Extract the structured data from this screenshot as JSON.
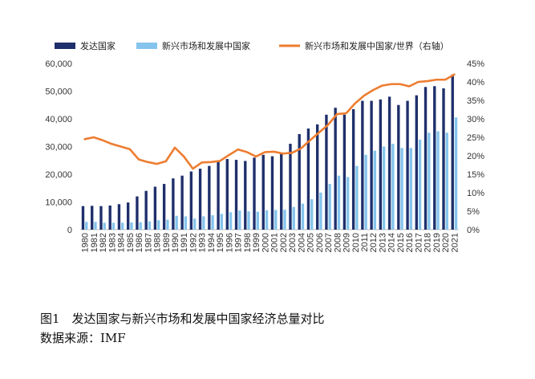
{
  "caption": {
    "title": "图1　发达国家与新兴市场和发展中国家经济总量对比",
    "source": "数据来源：IMF"
  },
  "chart_data": {
    "type": "bar",
    "legend_position": "top",
    "x": [
      "1980",
      "1981",
      "1982",
      "1983",
      "1984",
      "1985",
      "1986",
      "1987",
      "1988",
      "1989",
      "1990",
      "1991",
      "1992",
      "1993",
      "1994",
      "1995",
      "1996",
      "1997",
      "1998",
      "1999",
      "2000",
      "2001",
      "2002",
      "2003",
      "2004",
      "2005",
      "2006",
      "2007",
      "2008",
      "2009",
      "2010",
      "2011",
      "2012",
      "2013",
      "2014",
      "2015",
      "2016",
      "2017",
      "2018",
      "2019",
      "2020",
      "2021"
    ],
    "y_left": {
      "min": 0,
      "max": 60000,
      "ticks": [
        "0",
        "10,000",
        "20,000",
        "30,000",
        "40,000",
        "50,000",
        "60,000"
      ]
    },
    "y_right": {
      "min": 0,
      "max": 45,
      "ticks": [
        "0%",
        "5%",
        "10%",
        "15%",
        "20%",
        "25%",
        "30%",
        "35%",
        "40%",
        "45%"
      ]
    },
    "series": [
      {
        "name": "发达国家",
        "kind": "bar",
        "axis": "left",
        "color": "#1f2f6b",
        "values": [
          8500,
          8600,
          8500,
          8700,
          9200,
          9800,
          12000,
          14000,
          15500,
          16500,
          18500,
          19500,
          21000,
          22000,
          23000,
          24500,
          25500,
          25200,
          24800,
          26000,
          27000,
          26500,
          27500,
          31000,
          34500,
          36500,
          38000,
          41500,
          44000,
          41500,
          43500,
          46500,
          46500,
          47000,
          48000,
          45000,
          46500,
          48500,
          51500,
          51800,
          51000,
          56000
        ]
      },
      {
        "name": "新兴市场和发展中国家",
        "kind": "bar",
        "axis": "left",
        "color": "#85c4ec",
        "values": [
          2800,
          2800,
          2500,
          2500,
          2500,
          2600,
          2700,
          3000,
          3400,
          3600,
          5000,
          4800,
          4000,
          4800,
          5200,
          5700,
          6300,
          6900,
          6600,
          6500,
          7000,
          7100,
          7200,
          8200,
          9400,
          11000,
          13400,
          16500,
          19500,
          19000,
          23000,
          27000,
          28500,
          30000,
          31000,
          29500,
          29500,
          32500,
          35000,
          35500,
          35000,
          40500
        ]
      },
      {
        "name": "新兴市场和发展中国家/世界（右轴）",
        "kind": "line",
        "axis": "right",
        "color": "#ed7d31",
        "values": [
          24.5,
          25.0,
          24.2,
          23.2,
          22.5,
          21.8,
          19.0,
          18.3,
          17.8,
          18.5,
          22.2,
          19.8,
          16.5,
          18.2,
          18.3,
          18.6,
          20.2,
          21.7,
          21.0,
          19.8,
          21.0,
          21.1,
          20.6,
          20.8,
          22.0,
          24.2,
          26.3,
          28.4,
          31.3,
          31.5,
          34.2,
          36.3,
          37.8,
          39.0,
          39.4,
          39.4,
          38.8,
          40.0,
          40.2,
          40.6,
          40.6,
          42.0
        ]
      }
    ]
  }
}
